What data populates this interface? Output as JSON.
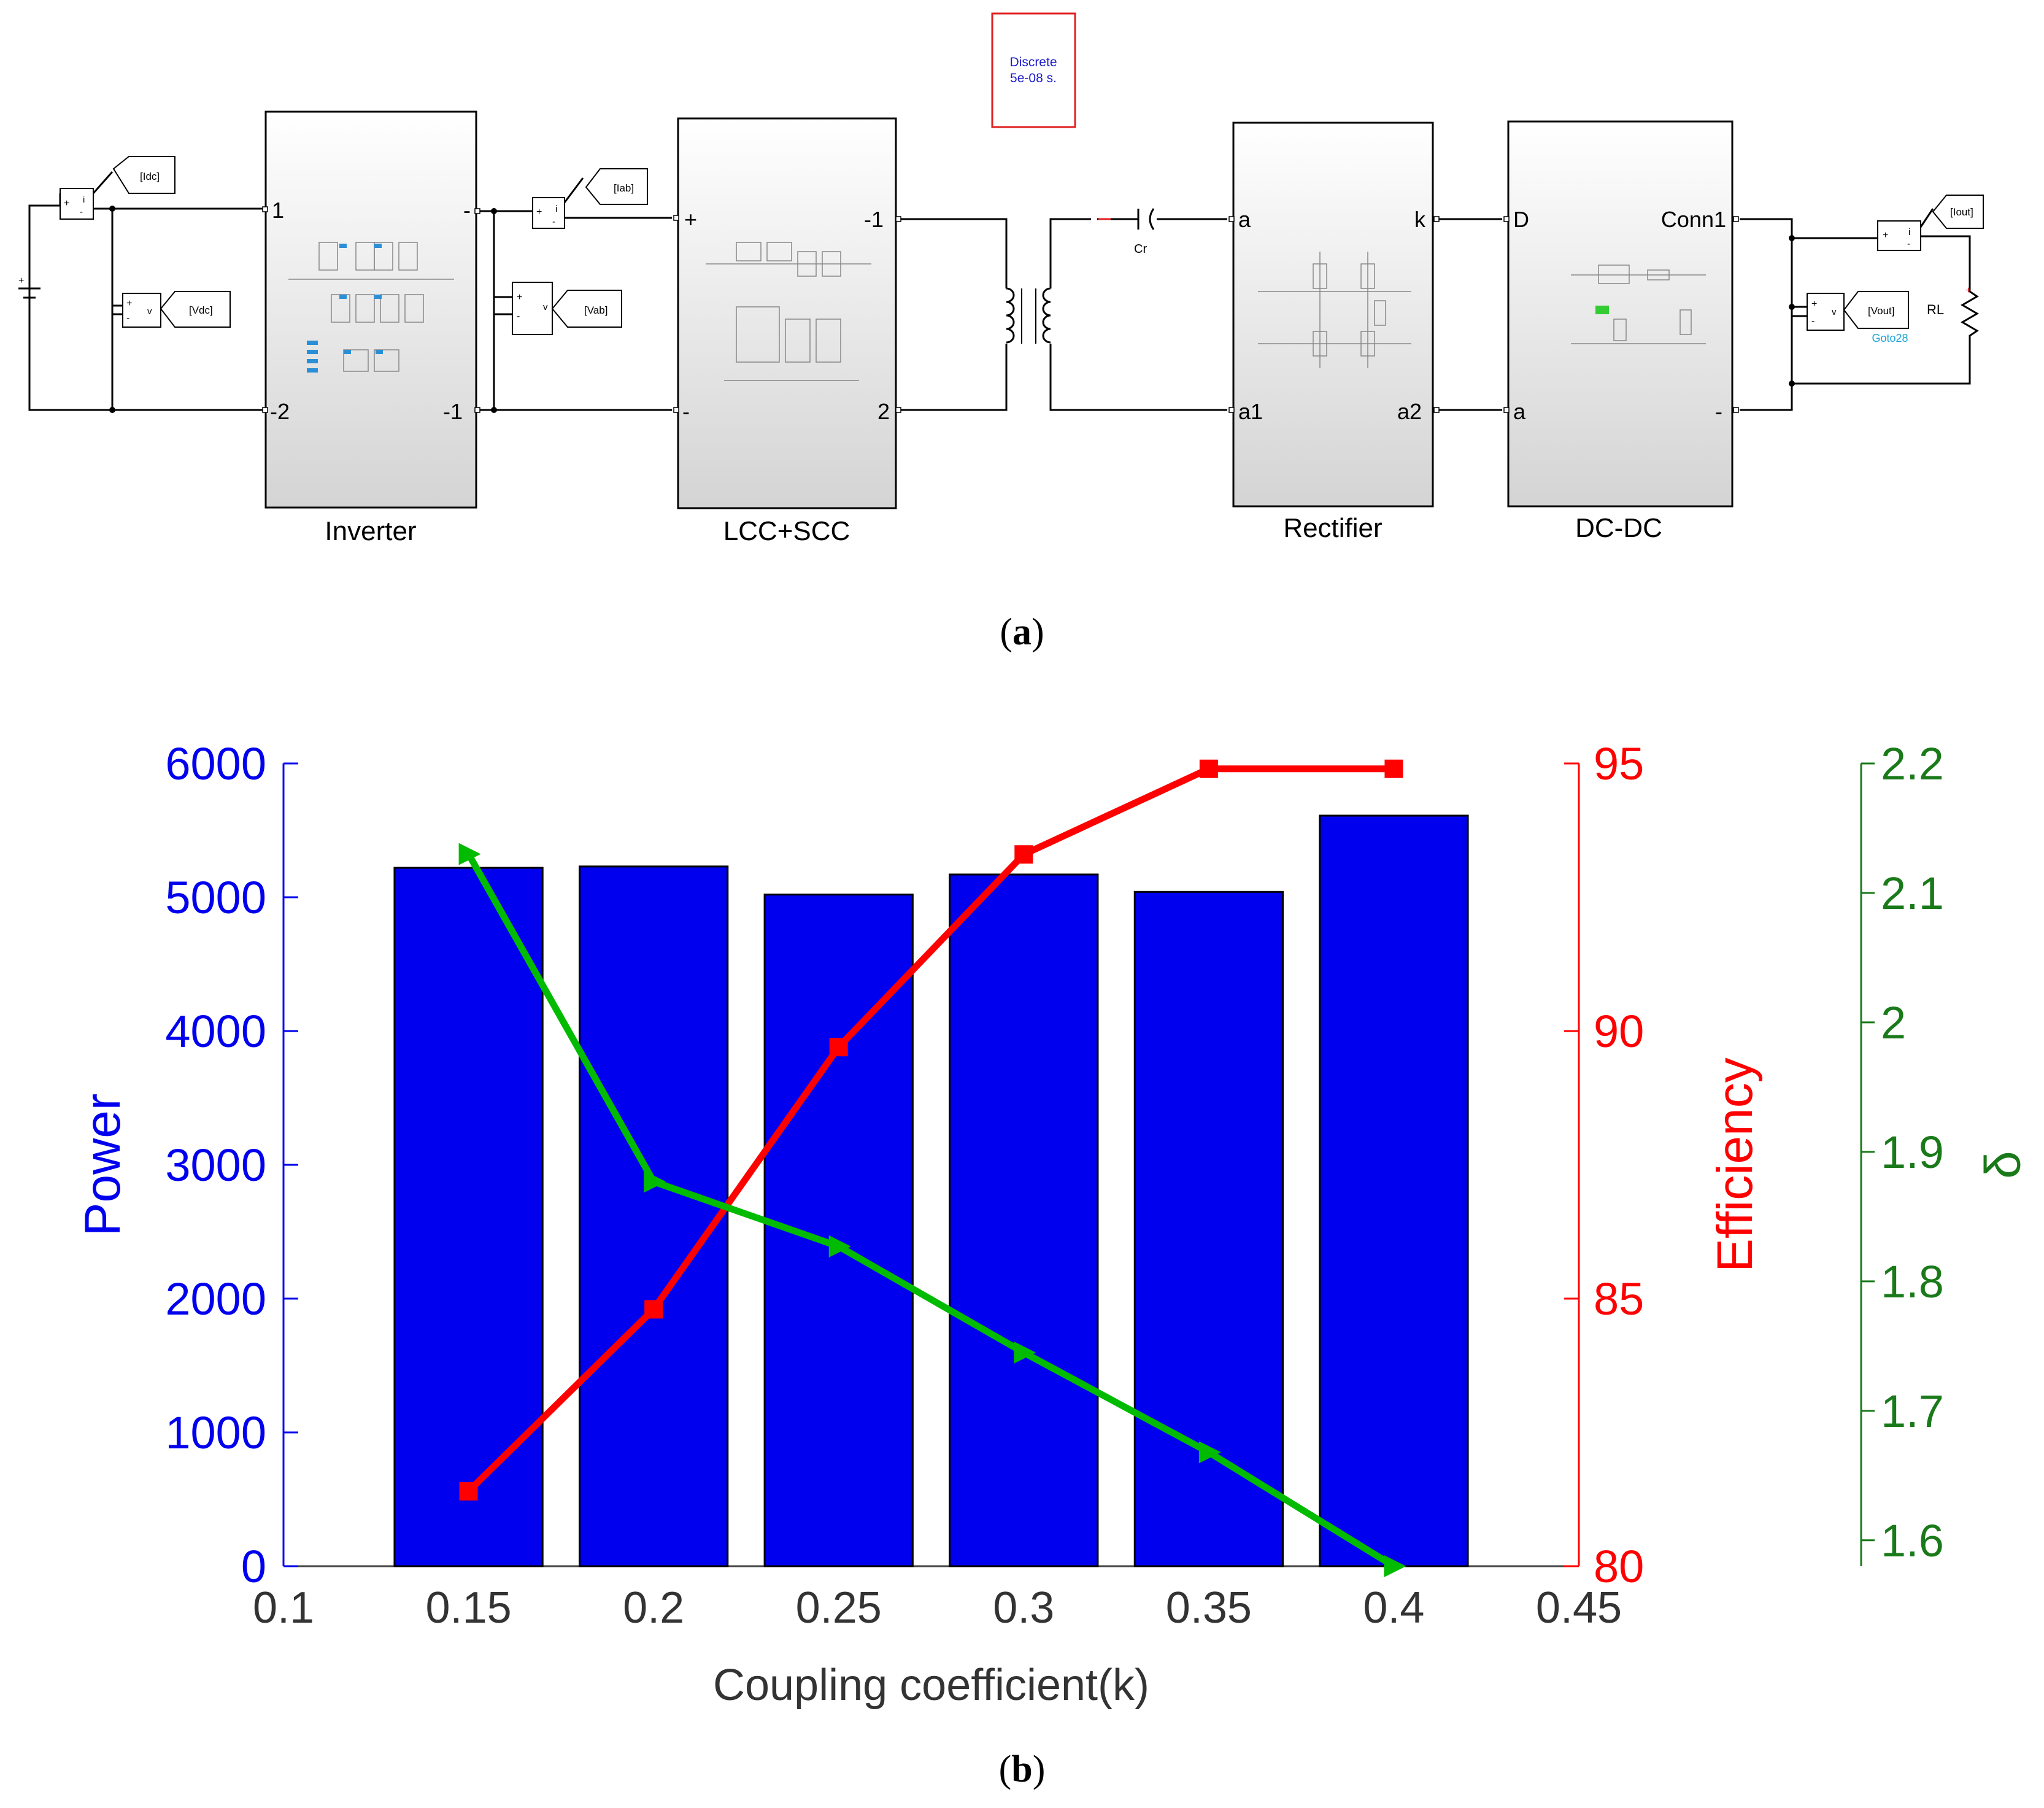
{
  "panel_a": {
    "caption_open": "(",
    "caption_letter": "a",
    "caption_close": ")",
    "powergui": {
      "line1": "Discrete",
      "line2": "5e-08 s."
    },
    "goto_tags": {
      "idc": "[Idc]",
      "vdc": "[Vdc]",
      "iab": "[Iab]",
      "vab": "[Vab]",
      "iout": "[Iout]",
      "vout": "[Vout]",
      "goto28": "Goto28"
    },
    "blocks": {
      "inverter": {
        "name": "Inverter",
        "p1": "1",
        "p2": "-2",
        "p3": "-",
        "p4": "-1"
      },
      "lcc": {
        "name": "LCC+SCC",
        "p1": "+",
        "p2": "-",
        "p3": "-1",
        "p4": "2"
      },
      "rectifier": {
        "name": "Rectifier",
        "p1": "a",
        "p2": "a1",
        "p3": "k",
        "p4": "a2"
      },
      "dcdc": {
        "name": "DC-DC",
        "p1": "D",
        "p2": "a",
        "p3": "Conn1",
        "p4": "-"
      }
    },
    "labels": {
      "cr": "Cr",
      "rl": "RL"
    },
    "meter": {
      "plus": "+",
      "minus": "-",
      "i": "i",
      "v": "v"
    }
  },
  "panel_b": {
    "caption_open": "(",
    "caption_letter": "b",
    "caption_close": ")"
  },
  "chart_data": {
    "type": "bar",
    "xlabel": "Coupling coefficient(k)",
    "xlim": [
      0.1,
      0.45
    ],
    "x_ticks": [
      "0.1",
      "0.15",
      "0.2",
      "0.25",
      "0.3",
      "0.35",
      "0.4",
      "0.45"
    ],
    "bars": {
      "name": "Power",
      "color": "#0000ee",
      "x": [
        0.15,
        0.2,
        0.25,
        0.3,
        0.35,
        0.4
      ],
      "values": [
        5220,
        5230,
        5020,
        5170,
        5040,
        5610
      ]
    },
    "left_axis": {
      "label": "Power",
      "color": "#0000ee",
      "ylim": [
        0,
        6000
      ],
      "ticks": [
        "0",
        "1000",
        "2000",
        "3000",
        "4000",
        "5000",
        "6000"
      ]
    },
    "efficiency": {
      "name": "Efficiency",
      "color": "#ff0000",
      "marker": "square",
      "x": [
        0.15,
        0.2,
        0.25,
        0.3,
        0.35,
        0.4
      ],
      "values": [
        81.4,
        84.8,
        89.7,
        93.3,
        94.9,
        94.9
      ]
    },
    "right_axis_1": {
      "label": "Efficiency",
      "color": "#ff0000",
      "ylim": [
        80,
        95
      ],
      "ticks": [
        "80",
        "85",
        "90",
        "95"
      ]
    },
    "delta": {
      "name": "δ",
      "color": "#00bb00",
      "marker": "triangle",
      "x": [
        0.15,
        0.2,
        0.25,
        0.3,
        0.35,
        0.4
      ],
      "values": [
        2.13,
        1.877,
        1.827,
        1.745,
        1.668,
        1.58
      ]
    },
    "right_axis_2": {
      "label": "δ",
      "color": "#1a7a1a",
      "ylim": [
        1.58,
        2.2
      ],
      "ticks": [
        "1.6",
        "1.7",
        "1.8",
        "1.9",
        "2",
        "2.1",
        "2.2"
      ]
    }
  }
}
